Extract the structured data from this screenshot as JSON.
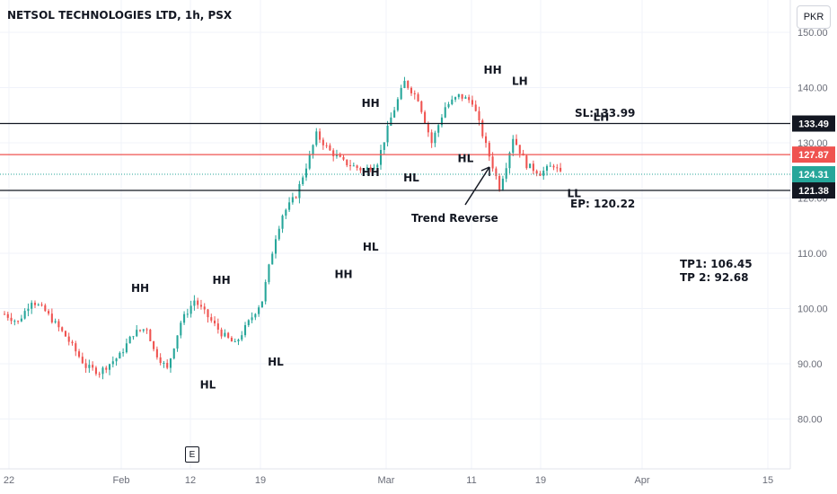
{
  "chart_title": "NETSOL TECHNOLOGIES LTD, 1h, PSX",
  "currency_button": "PKR",
  "earnings_marker": "E",
  "colors": {
    "up": "#26a69a",
    "down": "#ef5350",
    "text": "#131722",
    "grid": "#f0f3fa"
  },
  "chart_data": {
    "type": "candlestick",
    "title": "NETSOL TECHNOLOGIES LTD, 1h, PSX",
    "y_axis": {
      "min": 72,
      "max": 152,
      "ticks": [
        80,
        90,
        100,
        110,
        120,
        130,
        140,
        150
      ],
      "tick_labels": [
        "80.00",
        "90.00",
        "100.00",
        "110.00",
        "120.00",
        "130.00",
        "140.00",
        "150.00"
      ],
      "position": "right"
    },
    "x_axis": {
      "tick_labels": [
        "22",
        "Feb",
        "12",
        "19",
        "Mar",
        "11",
        "19",
        "Apr",
        "15"
      ]
    },
    "price_path": [
      {
        "d": 0,
        "p": 99.0
      },
      {
        "d": 2,
        "p": 97.5
      },
      {
        "d": 4,
        "p": 101.5
      },
      {
        "d": 6,
        "p": 99.5
      },
      {
        "d": 9,
        "p": 95.0
      },
      {
        "d": 12,
        "p": 89.5
      },
      {
        "d": 14,
        "p": 88.5
      },
      {
        "d": 17,
        "p": 91.5
      },
      {
        "d": 19,
        "p": 95.5
      },
      {
        "d": 21,
        "p": 96.5
      },
      {
        "d": 22,
        "p": 92.5
      },
      {
        "d": 24,
        "p": 89.0
      },
      {
        "d": 26,
        "p": 97.5
      },
      {
        "d": 28,
        "p": 101.5
      },
      {
        "d": 30,
        "p": 98.5
      },
      {
        "d": 32,
        "p": 95.5
      },
      {
        "d": 34,
        "p": 93.5
      },
      {
        "d": 36,
        "p": 97.5
      },
      {
        "d": 38,
        "p": 101.5
      },
      {
        "d": 39,
        "p": 107.5
      },
      {
        "d": 40,
        "p": 113.0
      },
      {
        "d": 41,
        "p": 117.0
      },
      {
        "d": 43,
        "p": 120.5
      },
      {
        "d": 45,
        "p": 127.5
      },
      {
        "d": 46,
        "p": 131.5
      },
      {
        "d": 48,
        "p": 128.5
      },
      {
        "d": 50,
        "p": 126.5
      },
      {
        "d": 52,
        "p": 125.5
      },
      {
        "d": 53,
        "p": 125.0
      },
      {
        "d": 55,
        "p": 126.5
      },
      {
        "d": 57,
        "p": 134.5
      },
      {
        "d": 59,
        "p": 141.0
      },
      {
        "d": 61,
        "p": 138.0
      },
      {
        "d": 63,
        "p": 130.0
      },
      {
        "d": 65,
        "p": 136.5
      },
      {
        "d": 67,
        "p": 138.5
      },
      {
        "d": 69,
        "p": 137.5
      },
      {
        "d": 71,
        "p": 129.5
      },
      {
        "d": 73,
        "p": 122.0
      },
      {
        "d": 74,
        "p": 126.0
      },
      {
        "d": 75,
        "p": 131.0
      },
      {
        "d": 77,
        "p": 126.0
      },
      {
        "d": 79,
        "p": 124.5
      },
      {
        "d": 81,
        "p": 126.0
      },
      {
        "d": 82,
        "p": 124.3
      }
    ],
    "levels": [
      {
        "value": 133.49,
        "label": "133.49",
        "color": "#131722"
      },
      {
        "value": 127.87,
        "label": "127.87",
        "color": "#ef5350"
      },
      {
        "value": 124.31,
        "label": "124.31",
        "color": "#26a69a",
        "style": "dotted"
      },
      {
        "value": 121.38,
        "label": "121.38",
        "color": "#131722"
      }
    ],
    "annotations": [
      {
        "text": "HH",
        "d": 10,
        "p": 103.0
      },
      {
        "text": "HL",
        "d": 15,
        "p": 85.5
      },
      {
        "text": "HH",
        "d": 16,
        "p": 104.5
      },
      {
        "text": "HL",
        "d": 20,
        "p": 89.7
      },
      {
        "text": "HH",
        "d": 25,
        "p": 105.5
      },
      {
        "text": "HL",
        "d": 27,
        "p": 110.5
      },
      {
        "text": "HH",
        "d": 27,
        "p": 124.0
      },
      {
        "text": "HH",
        "d": 27,
        "p": 136.5
      },
      {
        "text": "HL",
        "d": 30,
        "p": 123.0
      },
      {
        "text": "HL",
        "d": 34,
        "p": 126.5
      },
      {
        "text": "HH",
        "d": 36,
        "p": 142.5
      },
      {
        "text": "LH",
        "d": 38,
        "p": 140.5
      },
      {
        "text": "LL",
        "d": 42,
        "p": 120.2
      },
      {
        "text": "LH",
        "d": 44,
        "p": 134.0
      }
    ],
    "text_notes": [
      {
        "text": "SL:133.99"
      },
      {
        "text": "EP: 120.22"
      },
      {
        "text": "Trend Reverse"
      },
      {
        "text": "TP1: 106.45"
      },
      {
        "text": "TP 2: 92.68"
      }
    ]
  }
}
